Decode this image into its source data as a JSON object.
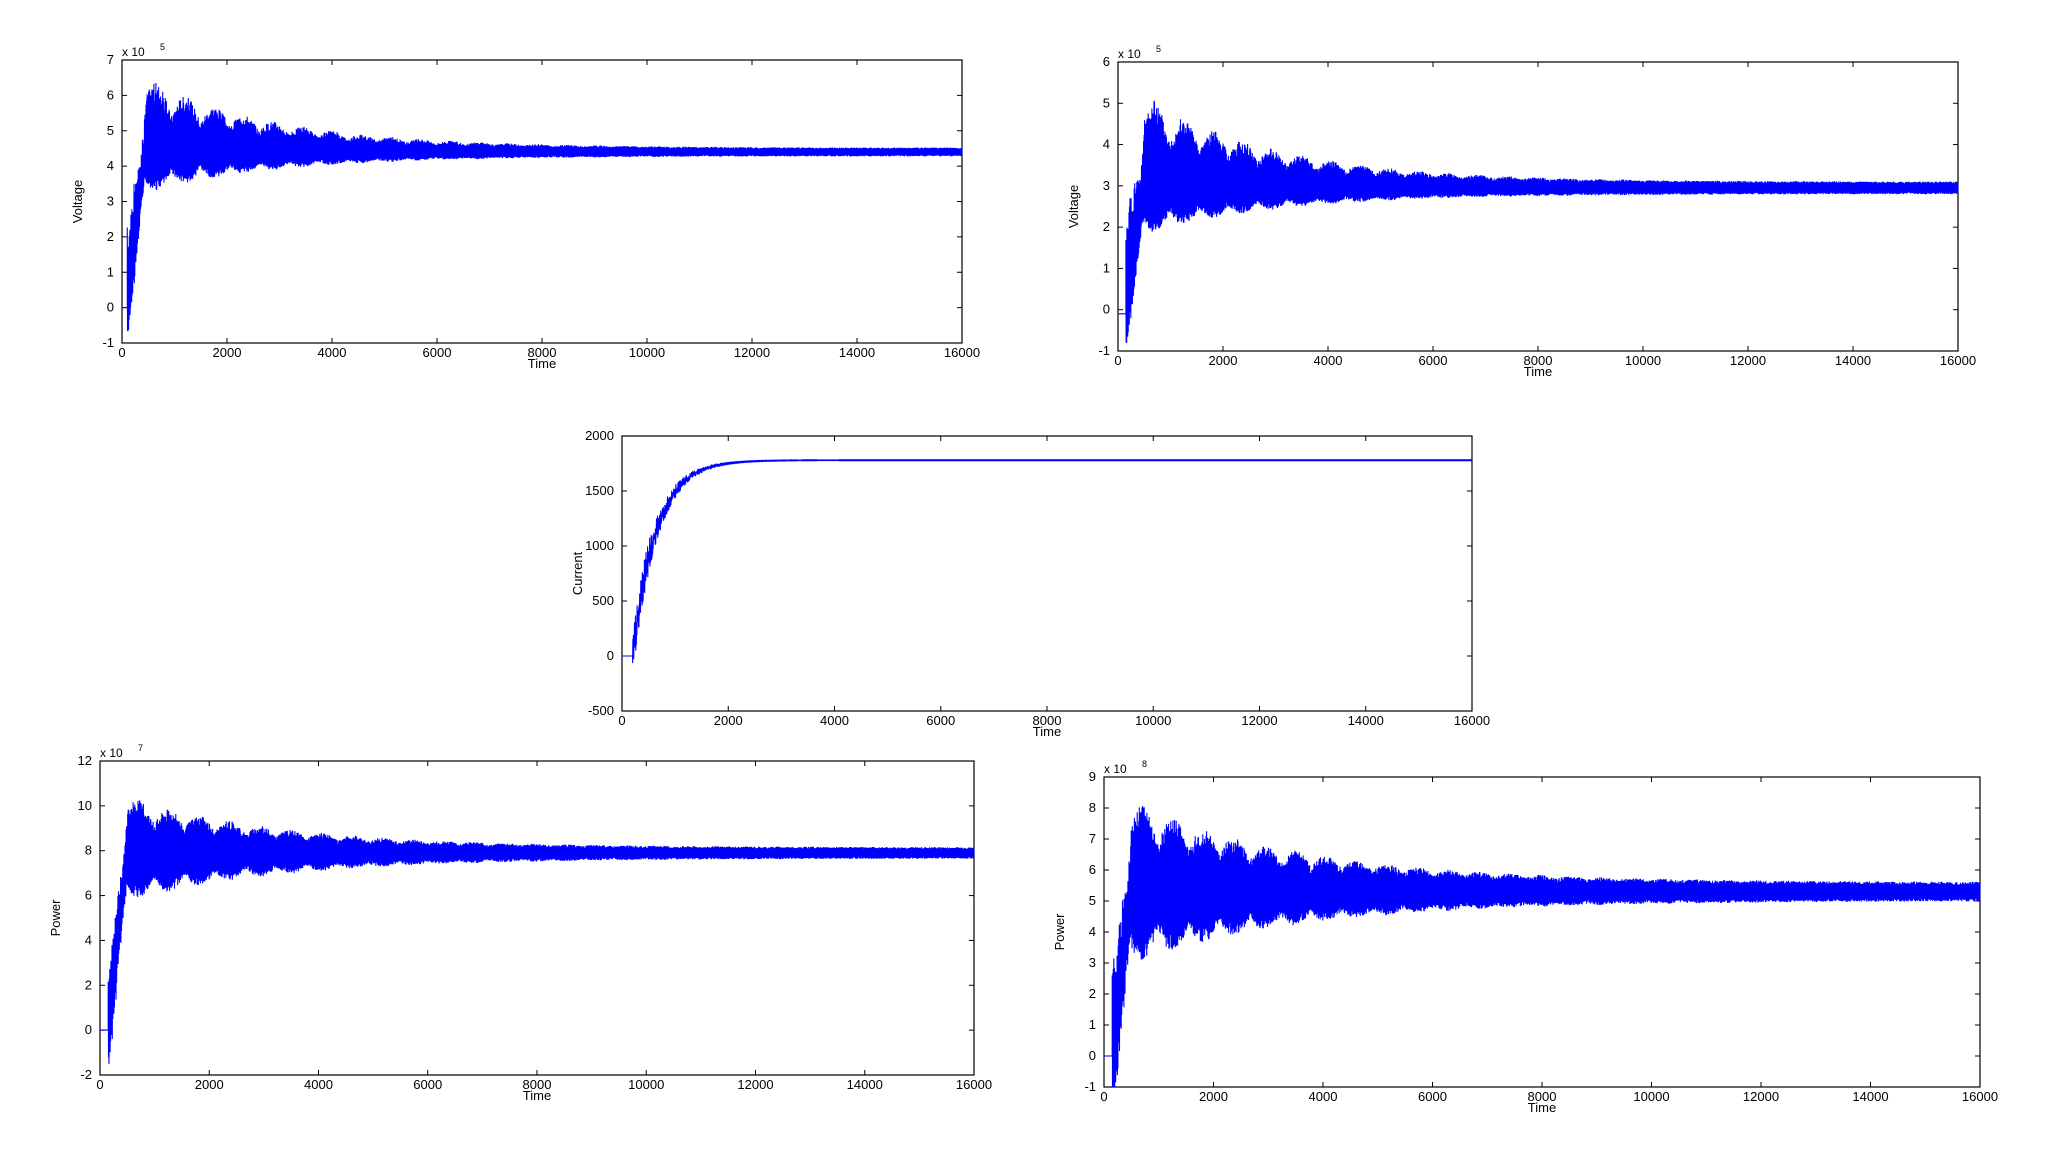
{
  "page": {
    "background": "#ffffff"
  },
  "style": {
    "line_color": "#0000ff",
    "axis_color": "#000000"
  },
  "chart_data": [
    {
      "id": "voltage-1",
      "type": "line",
      "xlabel": "Time",
      "ylabel": "Voltage",
      "exponent_label": "x 10",
      "exponent": "5",
      "xlim": [
        0,
        16000
      ],
      "ylim": [
        -1,
        7
      ],
      "xticks": [
        0,
        2000,
        4000,
        6000,
        8000,
        10000,
        12000,
        14000,
        16000
      ],
      "yticks": [
        -1,
        0,
        1,
        2,
        3,
        4,
        5,
        6,
        7
      ],
      "grid": false,
      "signal": {
        "start": 0,
        "step_time": 100,
        "steady": 4.4,
        "peak": 6.7,
        "trough": 3.2,
        "settle_time": 8000,
        "final_band": 0.12
      }
    },
    {
      "id": "voltage-2",
      "type": "line",
      "xlabel": "Time",
      "ylabel": "Voltage",
      "exponent_label": "x 10",
      "exponent": "5",
      "xlim": [
        0,
        16000
      ],
      "ylim": [
        -1,
        6
      ],
      "xticks": [
        0,
        2000,
        4000,
        6000,
        8000,
        10000,
        12000,
        14000,
        16000
      ],
      "yticks": [
        -1,
        0,
        1,
        2,
        3,
        4,
        5,
        6
      ],
      "grid": false,
      "signal": {
        "start": -0.1,
        "step_time": 150,
        "steady": 2.95,
        "peak": 5.4,
        "trough": 1.8,
        "settle_time": 8000,
        "final_band": 0.15
      }
    },
    {
      "id": "current",
      "type": "line",
      "xlabel": "Time",
      "ylabel": "Current",
      "xlim": [
        0,
        16000
      ],
      "ylim": [
        -500,
        2000
      ],
      "xticks": [
        0,
        2000,
        4000,
        6000,
        8000,
        10000,
        12000,
        14000,
        16000
      ],
      "yticks": [
        -500,
        0,
        500,
        1000,
        1500,
        2000
      ],
      "grid": false,
      "signal": {
        "start": 0,
        "step_time": 200,
        "steady": 1780,
        "rise_time": 1400,
        "final_band": 8
      }
    },
    {
      "id": "power-1",
      "type": "line",
      "xlabel": "Time",
      "ylabel": "Power",
      "exponent_label": "x 10",
      "exponent": "7",
      "xlim": [
        0,
        16000
      ],
      "ylim": [
        -2,
        12
      ],
      "xticks": [
        0,
        2000,
        4000,
        6000,
        8000,
        10000,
        12000,
        14000,
        16000
      ],
      "yticks": [
        -2,
        0,
        2,
        4,
        6,
        8,
        10,
        12
      ],
      "grid": false,
      "signal": {
        "start": 0,
        "step_time": 150,
        "steady": 7.9,
        "peak": 10.5,
        "trough": 5.7,
        "settle_time": 9000,
        "final_band": 0.25
      }
    },
    {
      "id": "power-2",
      "type": "line",
      "xlabel": "Time",
      "ylabel": "Power",
      "exponent_label": "x 10",
      "exponent": "8",
      "xlim": [
        0,
        16000
      ],
      "ylim": [
        -1,
        9
      ],
      "xticks": [
        0,
        2000,
        4000,
        6000,
        8000,
        10000,
        12000,
        14000,
        16000
      ],
      "yticks": [
        -1,
        0,
        1,
        2,
        3,
        4,
        5,
        6,
        7,
        8,
        9
      ],
      "grid": false,
      "signal": {
        "start": 0,
        "step_time": 150,
        "steady": 5.3,
        "peak": 8.3,
        "trough": 3.0,
        "settle_time": 10000,
        "final_band": 0.3
      }
    }
  ]
}
